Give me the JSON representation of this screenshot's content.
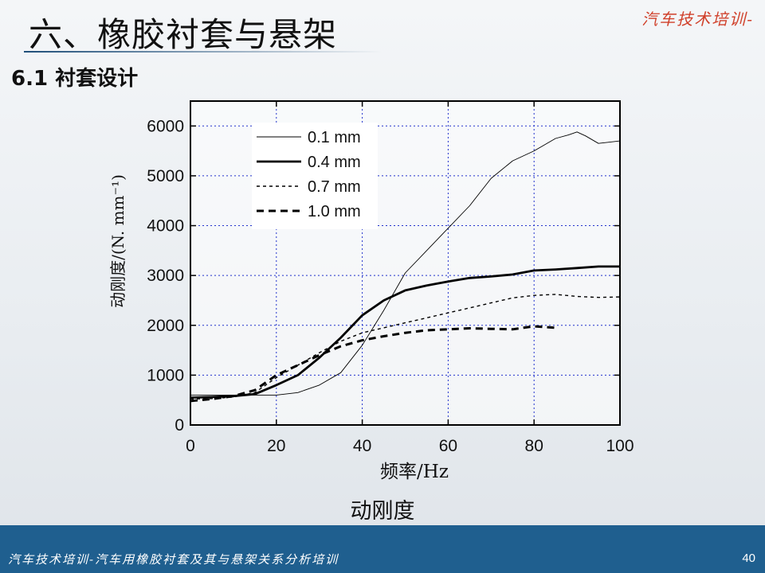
{
  "header": {
    "title": "六、橡胶衬套与悬架",
    "brand": "汽车技术培训-",
    "section": "6.1 衬套设计"
  },
  "caption": "动刚度",
  "footer": {
    "text": "汽车技术培训-汽车用橡胶衬套及其与悬架关系分析培训",
    "page": "40"
  },
  "chart_data": {
    "type": "line",
    "xlabel": "频率/Hz",
    "ylabel": "动刚度/(N. mm⁻¹)",
    "xlim": [
      0,
      100
    ],
    "ylim": [
      0,
      6500
    ],
    "xticks": [
      "0",
      "20",
      "40",
      "60",
      "80",
      "100"
    ],
    "yticks": [
      "0",
      "1000",
      "2000",
      "3000",
      "4000",
      "5000",
      "6000"
    ],
    "grid": true,
    "legend_position": "top-left",
    "series": [
      {
        "name": "0.1 mm",
        "color": "#000000",
        "style": "thin",
        "x": [
          0,
          5,
          10,
          15,
          20,
          25,
          30,
          35,
          40,
          45,
          50,
          55,
          60,
          65,
          70,
          75,
          80,
          85,
          88,
          90,
          92,
          95,
          100
        ],
        "y": [
          600,
          600,
          600,
          600,
          600,
          650,
          800,
          1050,
          1600,
          2300,
          3050,
          3500,
          3950,
          4400,
          4950,
          5300,
          5500,
          5750,
          5820,
          5880,
          5800,
          5650,
          5700
        ]
      },
      {
        "name": "0.4 mm",
        "color": "#000000",
        "style": "thick",
        "x": [
          0,
          5,
          10,
          15,
          20,
          25,
          30,
          35,
          40,
          45,
          50,
          55,
          60,
          65,
          70,
          75,
          80,
          85,
          90,
          95,
          100
        ],
        "y": [
          550,
          560,
          580,
          620,
          800,
          1000,
          1350,
          1750,
          2200,
          2500,
          2700,
          2800,
          2880,
          2950,
          2980,
          3020,
          3100,
          3120,
          3150,
          3180,
          3180
        ]
      },
      {
        "name": "0.7 mm",
        "color": "#000000",
        "style": "dotted",
        "x": [
          0,
          5,
          10,
          15,
          20,
          25,
          30,
          35,
          40,
          45,
          50,
          55,
          60,
          65,
          70,
          75,
          80,
          85,
          90,
          95,
          100
        ],
        "y": [
          520,
          530,
          560,
          650,
          950,
          1200,
          1450,
          1680,
          1850,
          1950,
          2050,
          2150,
          2250,
          2350,
          2450,
          2550,
          2600,
          2620,
          2580,
          2560,
          2570
        ]
      },
      {
        "name": "1.0 mm",
        "color": "#000000",
        "style": "dashed",
        "x": [
          0,
          5,
          10,
          15,
          20,
          25,
          30,
          35,
          40,
          45,
          50,
          55,
          60,
          65,
          70,
          75,
          80,
          85
        ],
        "y": [
          480,
          520,
          580,
          700,
          1000,
          1200,
          1400,
          1580,
          1700,
          1780,
          1850,
          1900,
          1920,
          1940,
          1930,
          1920,
          1980,
          1950
        ]
      }
    ]
  }
}
